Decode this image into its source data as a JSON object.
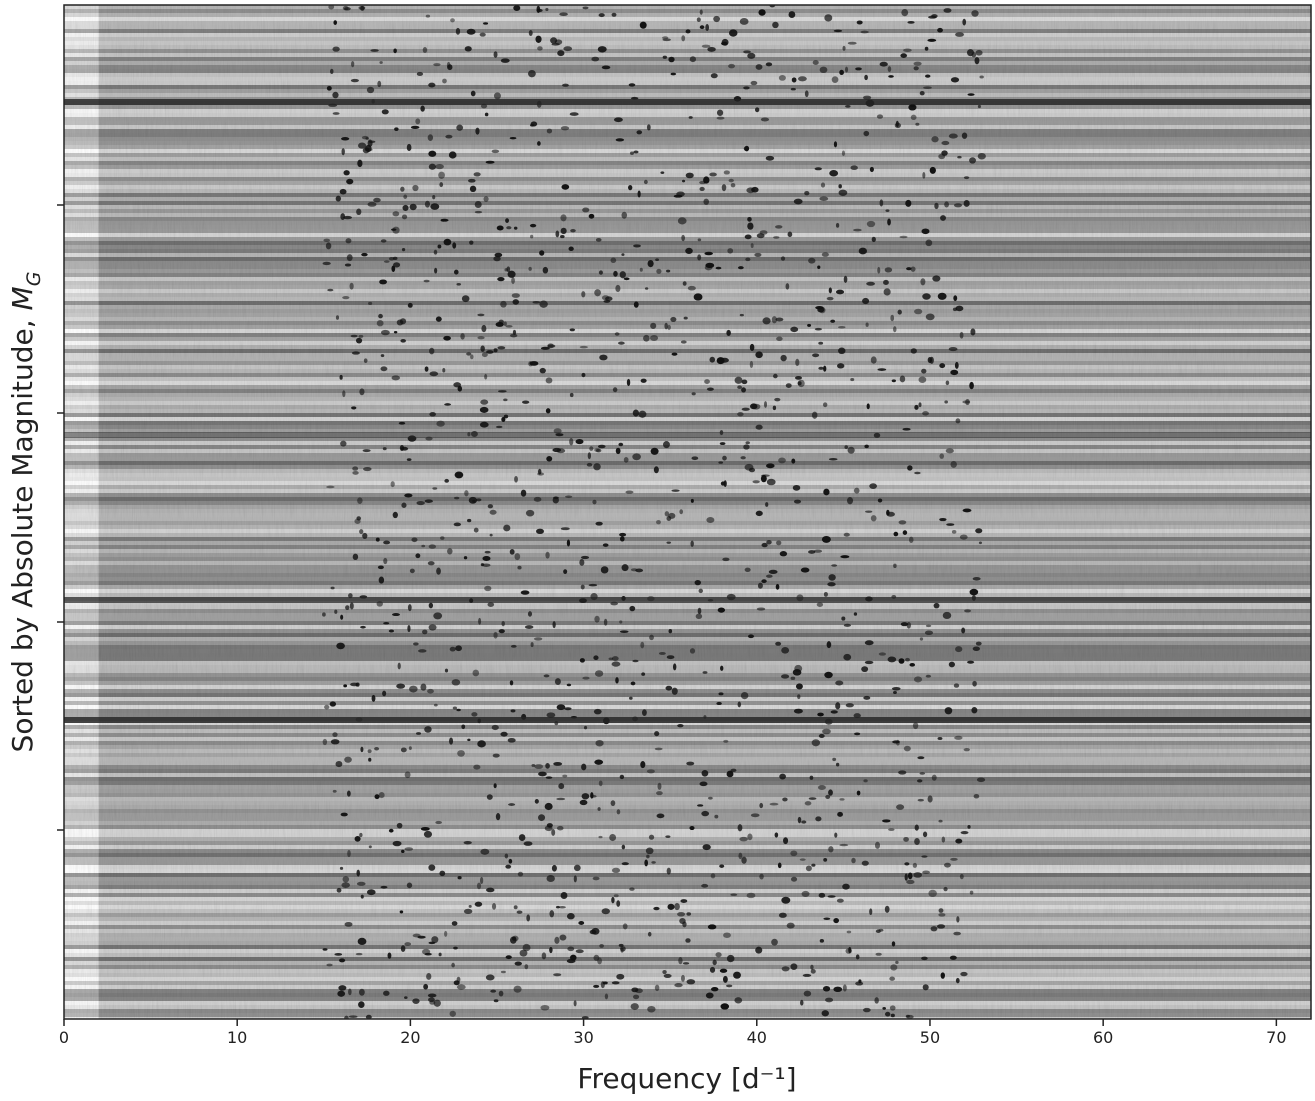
{
  "chart_data": {
    "type": "image",
    "xlabel": "Frequency [d⁻¹]",
    "ylabel": {
      "text": "Sorted by Absolute Magnitude, ",
      "symbol": "M",
      "subscript": "G"
    },
    "xlim": [
      0,
      72
    ],
    "xticks": [
      0,
      10,
      20,
      30,
      40,
      50,
      60,
      70
    ],
    "colormap": "gray_r"
  }
}
